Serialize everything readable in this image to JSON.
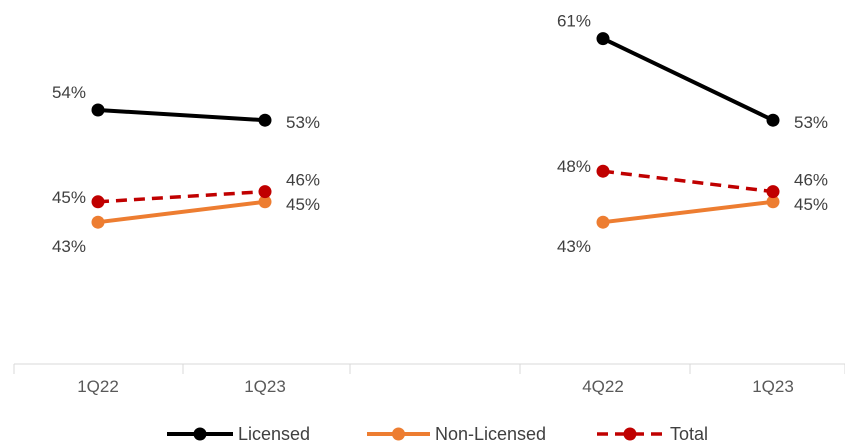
{
  "chart_data": {
    "type": "line",
    "title": "",
    "grid": false,
    "legend_position": "bottom",
    "panels": [
      {
        "categories": [
          "1Q22",
          "1Q23"
        ],
        "series": [
          {
            "name": "Licensed",
            "values": [
              54,
              53
            ],
            "labels": [
              "54%",
              "53%"
            ]
          },
          {
            "name": "Non-Licensed",
            "values": [
              43,
              45
            ],
            "labels": [
              "43%",
              "45%"
            ]
          },
          {
            "name": "Total",
            "values": [
              45,
              46
            ],
            "labels": [
              "45%",
              "46%"
            ]
          }
        ]
      },
      {
        "categories": [
          "4Q22",
          "1Q23"
        ],
        "series": [
          {
            "name": "Licensed",
            "values": [
              61,
              53
            ],
            "labels": [
              "61%",
              "53%"
            ]
          },
          {
            "name": "Non-Licensed",
            "values": [
              43,
              45
            ],
            "labels": [
              "43%",
              "45%"
            ]
          },
          {
            "name": "Total",
            "values": [
              48,
              46
            ],
            "labels": [
              "48%",
              "46%"
            ]
          }
        ]
      }
    ],
    "legend": [
      {
        "name": "Licensed",
        "color": "#000000",
        "style": "solid"
      },
      {
        "name": "Non-Licensed",
        "color": "#ED7D31",
        "style": "solid"
      },
      {
        "name": "Total",
        "color": "#C00000",
        "style": "dashed"
      }
    ]
  }
}
